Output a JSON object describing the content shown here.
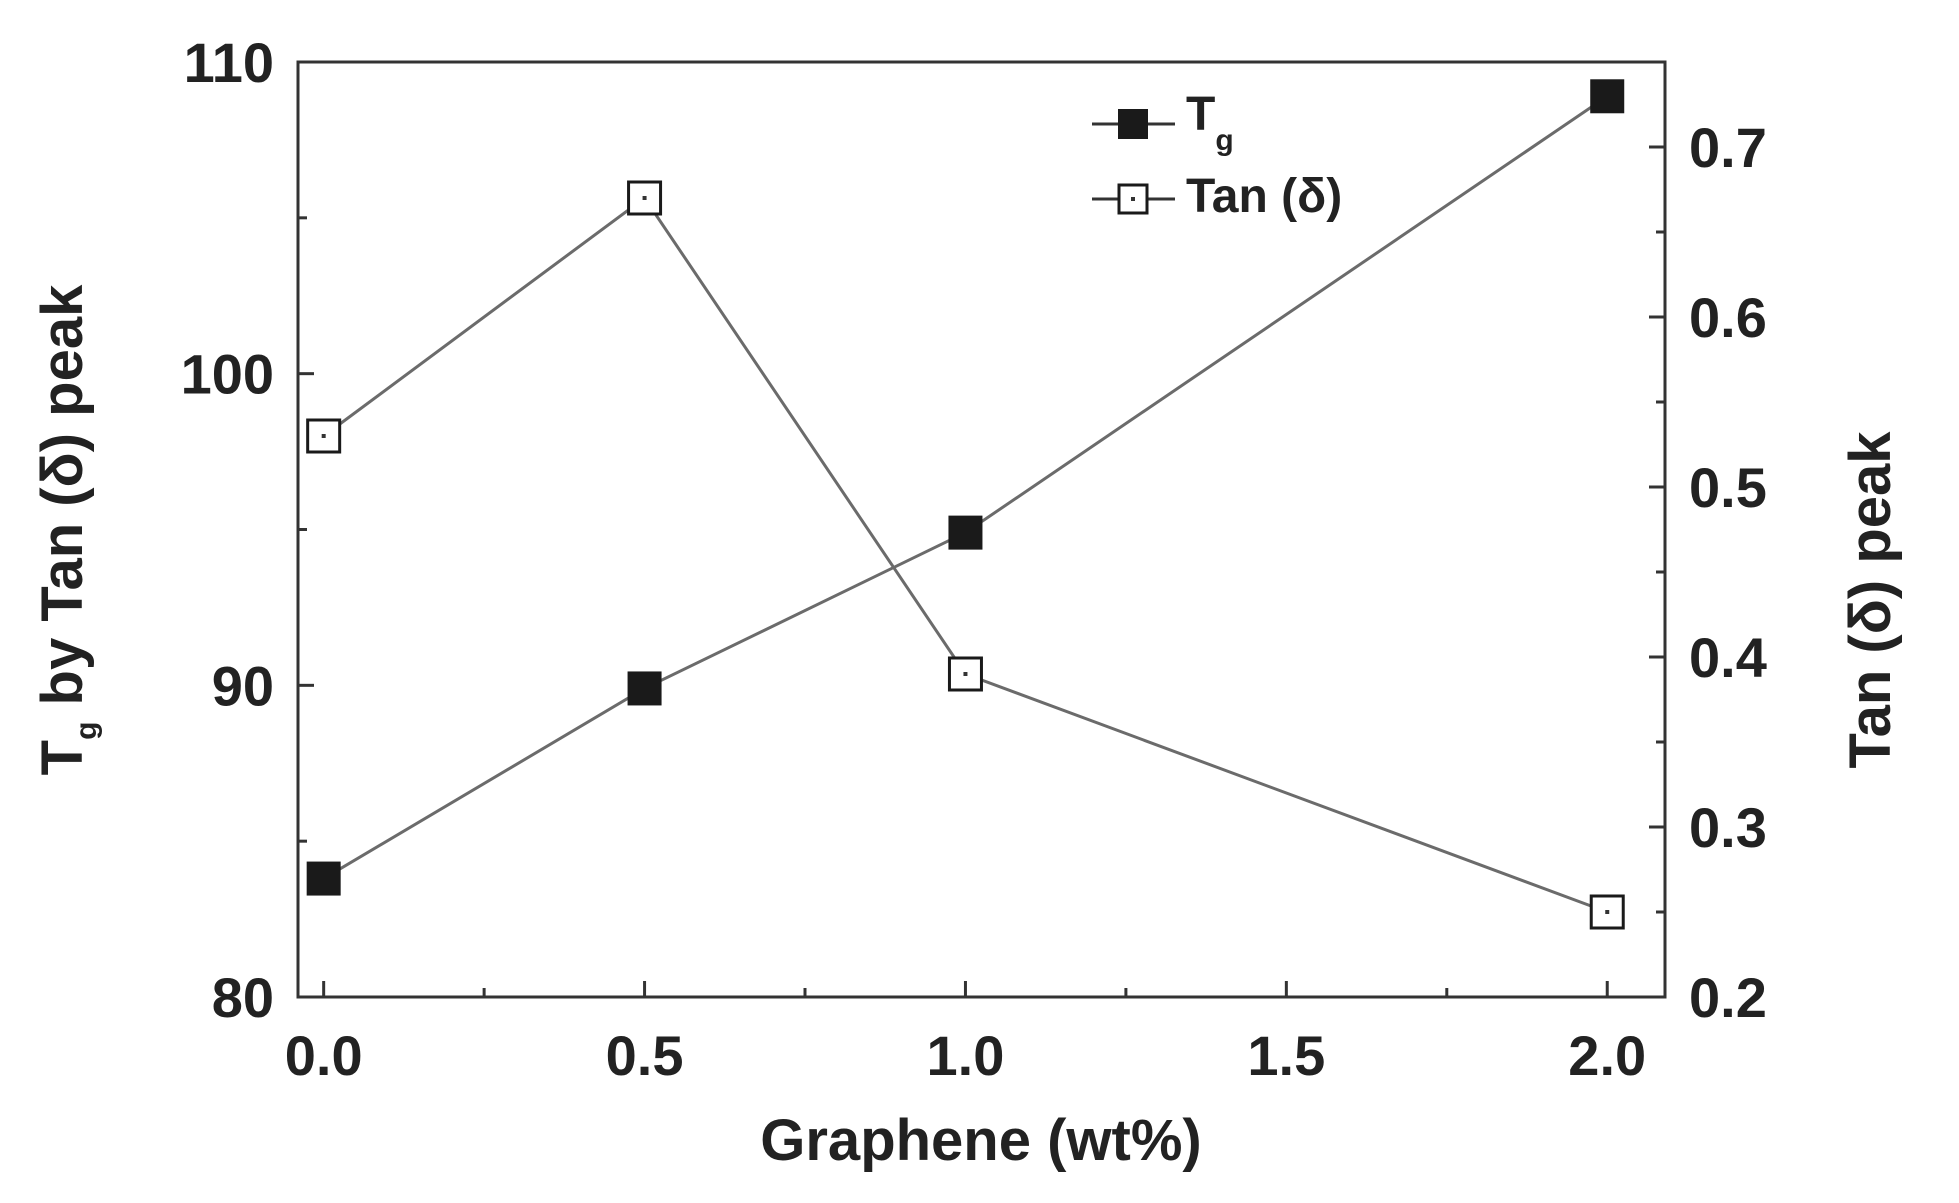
{
  "chart_data": {
    "type": "line",
    "x": [
      0.0,
      0.5,
      1.0,
      2.0
    ],
    "xlabel": "Graphene (wt%)",
    "ylabel": {
      "main": "T",
      "sub": "g",
      "rest": " by Tan (δ) peak"
    },
    "y2label": "Tan (δ) peak",
    "xlim": [
      -0.04,
      2.09
    ],
    "ylim": [
      80,
      110
    ],
    "y2lim": [
      0.2,
      0.75
    ],
    "xticks": [
      0.0,
      0.5,
      1.0,
      1.5,
      2.0
    ],
    "xtick_labels": [
      "0.0",
      "0.5",
      "1.0",
      "1.5",
      "2.0"
    ],
    "yticks": [
      80,
      90,
      100,
      110
    ],
    "ytick_labels": [
      "80",
      "90",
      "100",
      "110"
    ],
    "y2ticks": [
      0.2,
      0.3,
      0.4,
      0.5,
      0.6,
      0.7
    ],
    "y2tick_labels": [
      "0.2",
      "0.3",
      "0.4",
      "0.5",
      "0.6",
      "0.7"
    ],
    "grid": false,
    "legend_position": "top-right",
    "series": [
      {
        "name": {
          "main": "T",
          "sub": "g"
        },
        "axis": "left",
        "marker": "filled-square",
        "values": [
          83.8,
          89.9,
          94.9,
          108.9
        ]
      },
      {
        "name": {
          "main": "Tan (δ)",
          "sub": ""
        },
        "axis": "right",
        "marker": "open-square",
        "values": [
          0.53,
          0.67,
          0.39,
          0.25
        ]
      }
    ],
    "colors": {
      "line": "#6b6b6b",
      "marker_fill": "#1a1a1a",
      "axis": "#333333",
      "text": "#222222"
    }
  }
}
